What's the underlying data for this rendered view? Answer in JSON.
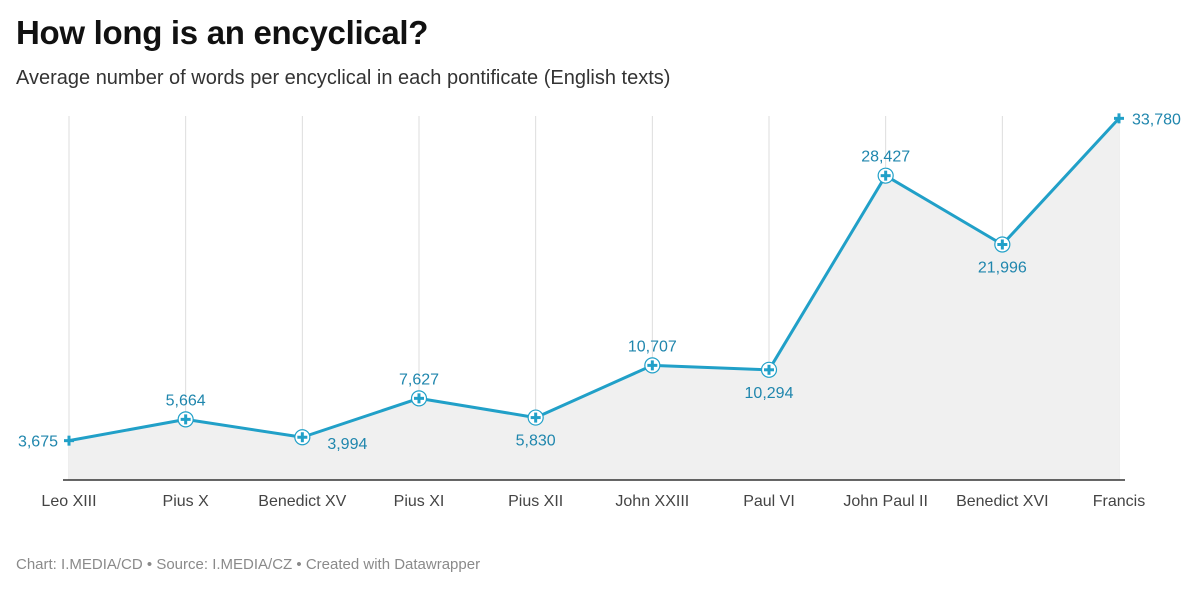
{
  "header": {
    "title": "How long is an encyclical?",
    "subtitle": "Average number of words per encyclical in each pontificate (English texts)"
  },
  "footer": {
    "chart_by_label": "Chart:",
    "chart_by": "I.MEDIA/CD",
    "source_label": "Source:",
    "source": "I.MEDIA/CZ",
    "created_with": "Created with Datawrapper"
  },
  "colors": {
    "line": "#21a0c8",
    "area": "#f0f0f0",
    "label": "#1f86ad"
  },
  "chart_data": {
    "type": "line",
    "title": "How long is an encyclical?",
    "subtitle": "Average number of words per encyclical in each pontificate (English texts)",
    "xlabel": "",
    "ylabel": "",
    "categories": [
      "Leo XIII",
      "Pius X",
      "Benedict XV",
      "Pius XI",
      "Pius XII",
      "John XXIII",
      "Paul VI",
      "John Paul II",
      "Benedict XVI",
      "Francis"
    ],
    "values": [
      3675,
      5664,
      3994,
      7627,
      5830,
      10707,
      10294,
      28427,
      21996,
      33780
    ],
    "value_labels": [
      "3,675",
      "5,664",
      "3,994",
      "7,627",
      "5,830",
      "10,707",
      "10,294",
      "28,427",
      "21,996",
      "33,780"
    ],
    "ylim": [
      0,
      34000
    ],
    "grid": "vertical",
    "area_fill": true
  }
}
